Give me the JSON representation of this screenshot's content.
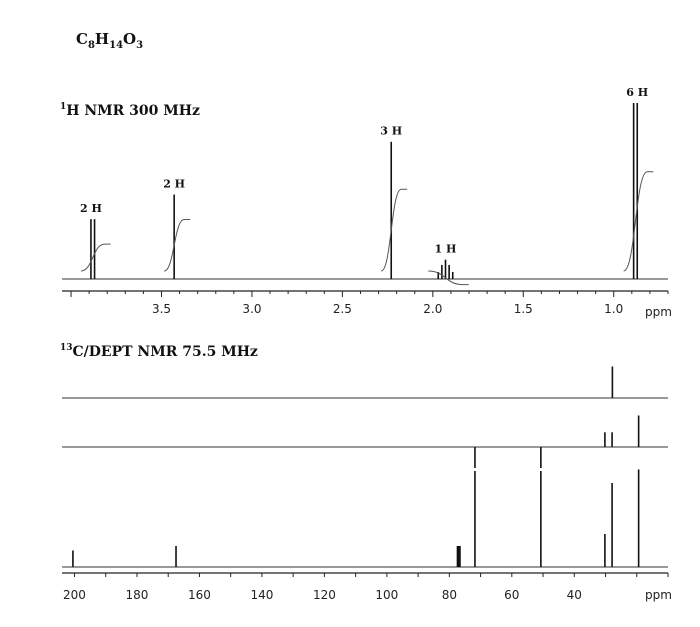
{
  "formula": {
    "parts": [
      {
        "text": "C",
        "sub": false
      },
      {
        "text": "8",
        "sub": true
      },
      {
        "text": "H",
        "sub": false
      },
      {
        "text": "14",
        "sub": true
      },
      {
        "text": "O",
        "sub": false
      },
      {
        "text": "3",
        "sub": true
      }
    ]
  },
  "chart_data": [
    {
      "type": "line",
      "title_sup": "1",
      "title": "H NMR 300 MHz",
      "xlabel": "ppm",
      "x_reversed": true,
      "xlim": [
        4.05,
        0.7
      ],
      "x_ticks": [
        "3.5",
        "3.0",
        "2.5",
        "2.0",
        "1.5",
        "1.0"
      ],
      "peaks": [
        {
          "shift": 3.89,
          "label": "2 H",
          "intensity": 0.34
        },
        {
          "shift": 3.87,
          "label": "",
          "intensity": 0.34
        },
        {
          "shift": 3.43,
          "label": "2 H",
          "intensity": 0.48
        },
        {
          "shift": 2.23,
          "label": "3 H",
          "intensity": 0.78
        },
        {
          "shift": 1.97,
          "label": "",
          "intensity": 0.04
        },
        {
          "shift": 1.95,
          "label": "",
          "intensity": 0.08
        },
        {
          "shift": 1.93,
          "label": "1 H",
          "intensity": 0.11
        },
        {
          "shift": 1.91,
          "label": "",
          "intensity": 0.08
        },
        {
          "shift": 1.89,
          "label": "",
          "intensity": 0.04
        },
        {
          "shift": 0.89,
          "label": "",
          "intensity": 1.0
        },
        {
          "shift": 0.87,
          "label": "6 H",
          "intensity": 1.0
        }
      ]
    },
    {
      "type": "line",
      "title_sup": "13",
      "title": "C/DEPT NMR 75.5 MHz",
      "xlabel": "ppm",
      "x_reversed": true,
      "xlim": [
        204,
        10
      ],
      "x_ticks": [
        "200",
        "180",
        "160",
        "140",
        "120",
        "100",
        "80",
        "60",
        "40"
      ],
      "series": [
        {
          "name": "",
          "peaks": [
            {
              "shift": 27.8,
              "intensity": 0.75
            }
          ]
        },
        {
          "name": "",
          "peaks": [
            {
              "shift": 71.8,
              "intensity": -0.5
            },
            {
              "shift": 50.7,
              "intensity": -0.5
            },
            {
              "shift": 30.2,
              "intensity": 0.35
            },
            {
              "shift": 27.9,
              "intensity": 0.35
            },
            {
              "shift": 19.4,
              "intensity": 0.75
            }
          ]
        },
        {
          "name": "",
          "peaks": [
            {
              "shift": 200.5,
              "intensity": 0.11
            },
            {
              "shift": 167.5,
              "intensity": 0.14
            },
            {
              "shift": 77.4,
              "intensity": 0.14
            },
            {
              "shift": 77.0,
              "intensity": 0.14
            },
            {
              "shift": 76.6,
              "intensity": 0.14
            },
            {
              "shift": 71.8,
              "intensity": 0.64
            },
            {
              "shift": 50.7,
              "intensity": 0.64
            },
            {
              "shift": 30.2,
              "intensity": 0.22
            },
            {
              "shift": 27.9,
              "intensity": 0.56
            },
            {
              "shift": 19.4,
              "intensity": 0.65
            }
          ]
        }
      ]
    }
  ]
}
